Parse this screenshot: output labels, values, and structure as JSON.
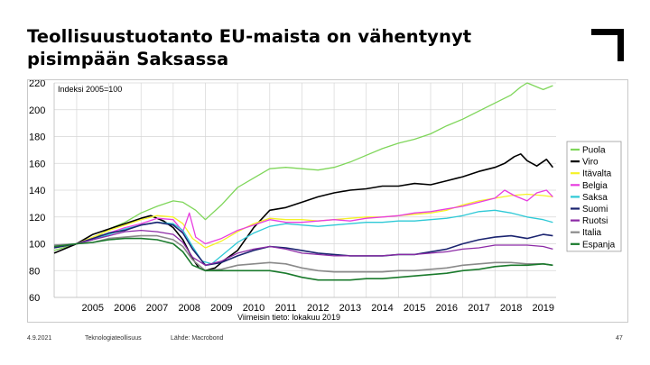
{
  "slide": {
    "title_lines": [
      "Teollisuustuotanto EU-maista on vähentynyt",
      "pisimpään Saksassa"
    ],
    "footer": {
      "date": "4.9.2021",
      "org": "Teknologiateollisuus",
      "source": "Lähde: Macrobond",
      "page": "47"
    }
  },
  "chart_data": {
    "type": "line",
    "title": "",
    "annotation": "Indeksi 2005=100",
    "xlabel": "Viimeisin tieto: lokakuu 2019",
    "ylabel": "",
    "ylim": [
      60,
      220
    ],
    "xlim": [
      2004.3,
      2019.9
    ],
    "yticks": [
      "60",
      "80",
      "100",
      "120",
      "140",
      "160",
      "180",
      "200",
      "220"
    ],
    "xticks": [
      "2005",
      "2006",
      "2007",
      "2008",
      "2009",
      "2010",
      "2011",
      "2012",
      "2013",
      "2014",
      "2015",
      "2016",
      "2017",
      "2018",
      "2019"
    ],
    "grid": true,
    "legend_position": "right",
    "series": [
      {
        "name": "Puola",
        "color": "#7fd65a",
        "width": 1.3,
        "x": [
          2004.3,
          2005,
          2005.5,
          2006,
          2006.5,
          2007,
          2007.5,
          2008,
          2008.3,
          2008.7,
          2009,
          2009.5,
          2010,
          2010.5,
          2011,
          2011.5,
          2012,
          2012.5,
          2013,
          2013.5,
          2014,
          2014.5,
          2015,
          2015.5,
          2016,
          2016.5,
          2017,
          2017.5,
          2018,
          2018.5,
          2018.8,
          2019,
          2019.5,
          2019.8
        ],
        "y": [
          95,
          100,
          103,
          111,
          116,
          123,
          128,
          132,
          131,
          125,
          118,
          129,
          142,
          149,
          156,
          157,
          156,
          155,
          157,
          161,
          166,
          171,
          175,
          178,
          182,
          188,
          193,
          199,
          205,
          211,
          217,
          220,
          215,
          218
        ]
      },
      {
        "name": "Viro",
        "color": "#000000",
        "width": 1.6,
        "x": [
          2004.3,
          2005,
          2005.5,
          2006,
          2006.5,
          2007,
          2007.3,
          2007.7,
          2008,
          2008.3,
          2008.6,
          2008.8,
          2009,
          2009.3,
          2009.6,
          2010,
          2010.5,
          2011,
          2011.5,
          2012,
          2012.5,
          2013,
          2013.5,
          2014,
          2014.5,
          2015,
          2015.5,
          2016,
          2016.5,
          2017,
          2017.5,
          2018,
          2018.3,
          2018.6,
          2018.8,
          2019,
          2019.3,
          2019.6,
          2019.8
        ],
        "y": [
          93,
          100,
          107,
          111,
          115,
          119,
          121,
          117,
          112,
          103,
          89,
          82,
          80,
          82,
          88,
          95,
          112,
          125,
          127,
          131,
          135,
          138,
          140,
          141,
          143,
          143,
          145,
          144,
          147,
          150,
          154,
          157,
          160,
          165,
          167,
          162,
          158,
          163,
          157
        ]
      },
      {
        "name": "Itävalta",
        "color": "#f5f227",
        "width": 1.3,
        "x": [
          2004.3,
          2005,
          2005.5,
          2006,
          2006.5,
          2007,
          2007.5,
          2008,
          2008.3,
          2008.6,
          2009,
          2009.5,
          2010,
          2010.5,
          2011,
          2011.5,
          2012,
          2012.5,
          2013,
          2013.5,
          2014,
          2014.5,
          2015,
          2015.5,
          2016,
          2016.5,
          2017,
          2017.5,
          2018,
          2018.5,
          2019,
          2019.5,
          2019.8
        ],
        "y": [
          97,
          100,
          105,
          110,
          114,
          118,
          121,
          120,
          115,
          104,
          97,
          102,
          109,
          115,
          119,
          118,
          118,
          117,
          118,
          119,
          120,
          120,
          121,
          122,
          123,
          125,
          129,
          132,
          134,
          136,
          137,
          136,
          135
        ]
      },
      {
        "name": "Belgia",
        "color": "#e83ee0",
        "width": 1.3,
        "x": [
          2004.3,
          2005,
          2005.5,
          2006,
          2006.5,
          2007,
          2007.5,
          2008,
          2008.3,
          2008.5,
          2008.7,
          2009,
          2009.5,
          2010,
          2010.5,
          2011,
          2011.5,
          2012,
          2012.5,
          2013,
          2013.5,
          2014,
          2014.5,
          2015,
          2015.5,
          2016,
          2016.5,
          2017,
          2017.5,
          2018,
          2018.3,
          2018.6,
          2019,
          2019.3,
          2019.6,
          2019.8
        ],
        "y": [
          98,
          100,
          104,
          108,
          112,
          115,
          119,
          118,
          109,
          123,
          105,
          100,
          104,
          110,
          114,
          118,
          116,
          116,
          117,
          118,
          117,
          119,
          120,
          121,
          123,
          124,
          126,
          128,
          131,
          134,
          140,
          136,
          132,
          138,
          140,
          135
        ]
      },
      {
        "name": "Saksa",
        "color": "#2ec9d6",
        "width": 1.3,
        "x": [
          2004.3,
          2005,
          2005.5,
          2006,
          2006.5,
          2007,
          2007.5,
          2008,
          2008.3,
          2008.6,
          2008.9,
          2009.2,
          2009.5,
          2010,
          2010.5,
          2011,
          2011.5,
          2012,
          2012.5,
          2013,
          2013.5,
          2014,
          2014.5,
          2015,
          2015.5,
          2016,
          2016.5,
          2017,
          2017.5,
          2018,
          2018.5,
          2019,
          2019.5,
          2019.8
        ],
        "y": [
          99,
          100,
          103,
          107,
          111,
          114,
          116,
          115,
          110,
          98,
          87,
          85,
          91,
          101,
          108,
          113,
          115,
          114,
          113,
          114,
          115,
          116,
          116,
          117,
          117,
          118,
          119,
          121,
          124,
          125,
          123,
          120,
          118,
          116
        ]
      },
      {
        "name": "Suomi",
        "color": "#1b2470",
        "width": 1.6,
        "x": [
          2004.3,
          2005,
          2005.5,
          2006,
          2006.5,
          2007,
          2007.5,
          2008,
          2008.3,
          2008.6,
          2009,
          2009.5,
          2010,
          2010.5,
          2011,
          2011.5,
          2012,
          2012.5,
          2013,
          2013.5,
          2014,
          2014.5,
          2015,
          2015.5,
          2016,
          2016.5,
          2017,
          2017.5,
          2018,
          2018.5,
          2019,
          2019.5,
          2019.8
        ],
        "y": [
          97,
          100,
          104,
          108,
          110,
          114,
          116,
          114,
          108,
          96,
          84,
          86,
          91,
          95,
          98,
          97,
          95,
          93,
          92,
          91,
          91,
          91,
          92,
          92,
          94,
          96,
          100,
          103,
          105,
          106,
          104,
          107,
          106
        ]
      },
      {
        "name": "Ruotsi",
        "color": "#8c2aa6",
        "width": 1.3,
        "x": [
          2004.3,
          2005,
          2005.5,
          2006,
          2006.5,
          2007,
          2007.5,
          2008,
          2008.3,
          2008.6,
          2009,
          2009.5,
          2010,
          2010.5,
          2011,
          2011.5,
          2012,
          2012.5,
          2013,
          2013.5,
          2014,
          2014.5,
          2015,
          2015.5,
          2016,
          2016.5,
          2017,
          2017.5,
          2018,
          2018.5,
          2019,
          2019.5,
          2019.8
        ],
        "y": [
          98,
          100,
          103,
          106,
          109,
          110,
          109,
          107,
          101,
          90,
          84,
          87,
          93,
          96,
          98,
          96,
          93,
          92,
          91,
          91,
          91,
          91,
          92,
          92,
          93,
          94,
          96,
          97,
          99,
          99,
          99,
          98,
          96
        ]
      },
      {
        "name": "Italia",
        "color": "#8a8a8a",
        "width": 1.6,
        "x": [
          2004.3,
          2005,
          2005.5,
          2006,
          2006.5,
          2007,
          2007.5,
          2008,
          2008.3,
          2008.6,
          2009,
          2009.5,
          2010,
          2010.5,
          2011,
          2011.5,
          2012,
          2012.5,
          2013,
          2013.5,
          2014,
          2014.5,
          2015,
          2015.5,
          2016,
          2016.5,
          2017,
          2017.5,
          2018,
          2018.5,
          2019,
          2019.5,
          2019.8
        ],
        "y": [
          99,
          100,
          101,
          104,
          105,
          106,
          106,
          103,
          98,
          88,
          80,
          81,
          84,
          85,
          86,
          85,
          82,
          80,
          79,
          79,
          79,
          79,
          80,
          80,
          81,
          82,
          84,
          85,
          86,
          86,
          85,
          85,
          84
        ]
      },
      {
        "name": "Espanja",
        "color": "#1a7a2c",
        "width": 1.6,
        "x": [
          2004.3,
          2005,
          2005.5,
          2006,
          2006.5,
          2007,
          2007.5,
          2008,
          2008.3,
          2008.6,
          2009,
          2009.5,
          2010,
          2010.5,
          2011,
          2011.5,
          2012,
          2012.5,
          2013,
          2013.5,
          2014,
          2014.5,
          2015,
          2015.5,
          2016,
          2016.5,
          2017,
          2017.5,
          2018,
          2018.5,
          2019,
          2019.5,
          2019.8
        ],
        "y": [
          98,
          100,
          101,
          103,
          104,
          104,
          103,
          100,
          94,
          84,
          80,
          80,
          80,
          80,
          80,
          78,
          75,
          73,
          73,
          73,
          74,
          74,
          75,
          76,
          77,
          78,
          80,
          81,
          83,
          84,
          84,
          85,
          84
        ]
      }
    ]
  }
}
